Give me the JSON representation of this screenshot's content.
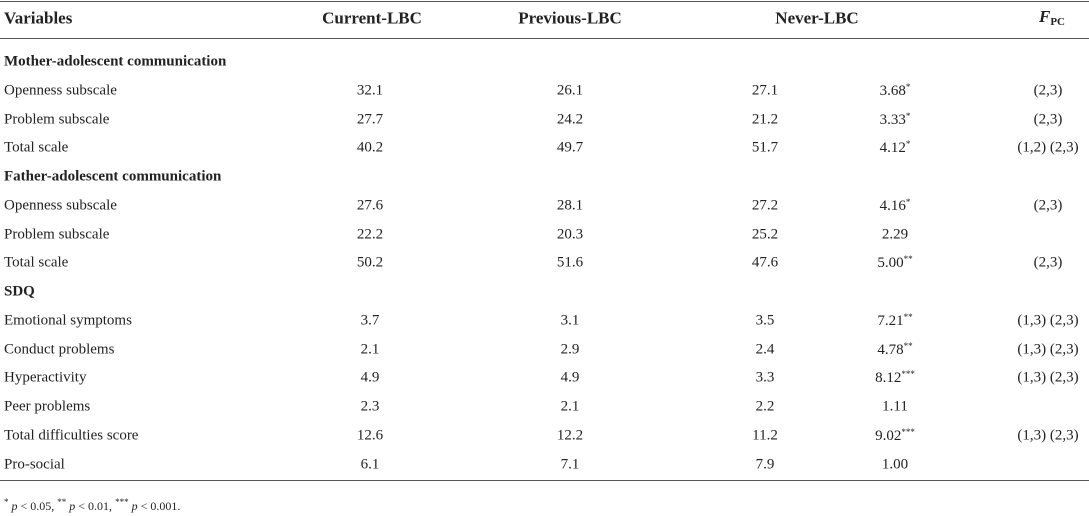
{
  "table": {
    "header": [
      "Variables",
      "Current-LBC",
      "Previous-LBC",
      "Never-LBC",
      {
        "symbol": "F",
        "subscript": "PC"
      }
    ],
    "sections": [
      {
        "title": "Mother-adolescent communication",
        "rows": [
          {
            "label": "Openness subscale",
            "current": "32.1",
            "previous": "26.1",
            "never": "27.1",
            "f": "3.68",
            "sig": "*",
            "pc": "(2,3)"
          },
          {
            "label": "Problem subscale",
            "current": "27.7",
            "previous": "24.2",
            "never": "21.2",
            "f": "3.33",
            "sig": "*",
            "pc": "(2,3)"
          },
          {
            "label": "Total scale",
            "current": "40.2",
            "previous": "49.7",
            "never": "51.7",
            "f": "4.12",
            "sig": "*",
            "pc": "(1,2) (2,3)"
          }
        ]
      },
      {
        "title": "Father-adolescent communication",
        "rows": [
          {
            "label": "Openness subscale",
            "current": "27.6",
            "previous": "28.1",
            "never": "27.2",
            "f": "4.16",
            "sig": "*",
            "pc": "(2,3)"
          },
          {
            "label": "Problem subscale",
            "current": "22.2",
            "previous": "20.3",
            "never": "25.2",
            "f": "2.29"
          },
          {
            "label": "Total scale",
            "current": "50.2",
            "previous": "51.6",
            "never": "47.6",
            "f": "5.00",
            "sig": "**",
            "pc": "(2,3)"
          }
        ]
      },
      {
        "title": "SDQ",
        "rows": [
          {
            "label": "Emotional symptoms",
            "current": "3.7",
            "previous": "3.1",
            "never": "3.5",
            "f": "7.21",
            "sig": "**",
            "pc": "(1,3) (2,3)"
          },
          {
            "label": "Conduct problems",
            "current": "2.1",
            "previous": "2.9",
            "never": "2.4",
            "f": "4.78",
            "sig": "**",
            "pc": "(1,3) (2,3)"
          },
          {
            "label": "Hyperactivity",
            "current": "4.9",
            "previous": "4.9",
            "never": "3.3",
            "f": "8.12",
            "sig": "***",
            "pc": "(1,3) (2,3)"
          },
          {
            "label": "Peer problems",
            "current": "2.3",
            "previous": "2.1",
            "never": "2.2",
            "f": "1.11"
          },
          {
            "label": "Total difficulties score",
            "current": "12.6",
            "previous": "12.2",
            "never": "11.2",
            "f": "9.02",
            "sig": "***",
            "pc": "(1,3) (2,3)"
          },
          {
            "label": "Pro-social",
            "current": "6.1",
            "previous": "7.1",
            "never": "7.9",
            "f": "1.00"
          }
        ]
      }
    ],
    "footnote": [
      {
        "mark": "*",
        "variable": "p",
        "text": " < 0.05, "
      },
      {
        "mark": "**",
        "variable": "p",
        "text": " < 0.01, "
      },
      {
        "mark": "***",
        "variable": "p",
        "text": " < 0.001."
      }
    ]
  }
}
